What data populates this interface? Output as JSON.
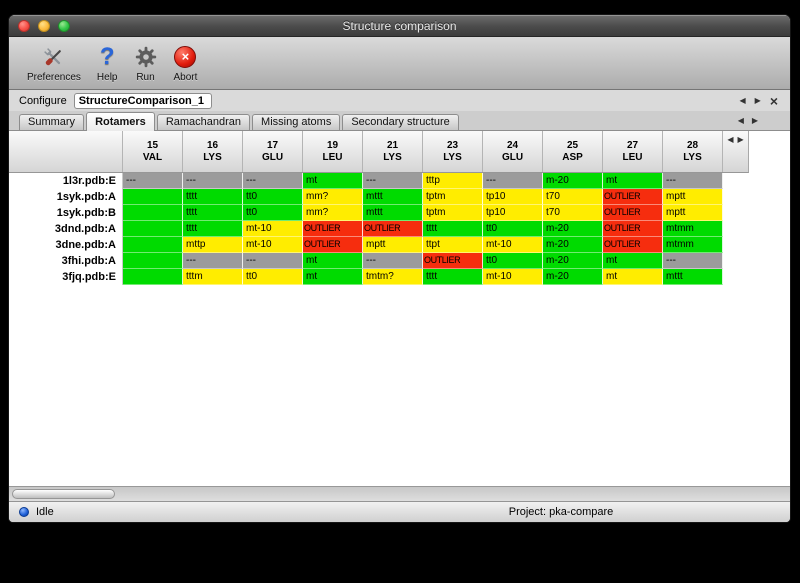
{
  "window": {
    "title": "Structure comparison"
  },
  "toolbar": {
    "buttons": [
      {
        "label": "Preferences",
        "icon": "tools-icon"
      },
      {
        "label": "Help",
        "icon": "question-icon"
      },
      {
        "label": "Run",
        "icon": "gear-icon"
      },
      {
        "label": "Abort",
        "icon": "abort-x-icon"
      }
    ]
  },
  "configure": {
    "label": "Configure",
    "value": "StructureComparison_1"
  },
  "icons": {
    "back": "◀",
    "forward": "▶",
    "close": "×",
    "scroll_left": "◀",
    "scroll_right": "▶"
  },
  "tabs": [
    {
      "label": "Summary",
      "selected": false
    },
    {
      "label": "Rotamers",
      "selected": true
    },
    {
      "label": "Ramachandran",
      "selected": false
    },
    {
      "label": "Missing atoms",
      "selected": false
    },
    {
      "label": "Secondary structure",
      "selected": false
    }
  ],
  "table": {
    "legend_colors": {
      "green": "#00db00",
      "yellow": "#ffed00",
      "red": "#f62d0e",
      "gray": "#9b9b9b"
    },
    "columns": [
      {
        "num": "15",
        "res": "VAL"
      },
      {
        "num": "16",
        "res": "LYS"
      },
      {
        "num": "17",
        "res": "GLU"
      },
      {
        "num": "19",
        "res": "LEU"
      },
      {
        "num": "21",
        "res": "LYS"
      },
      {
        "num": "23",
        "res": "LYS"
      },
      {
        "num": "24",
        "res": "GLU"
      },
      {
        "num": "25",
        "res": "ASP"
      },
      {
        "num": "27",
        "res": "LEU"
      },
      {
        "num": "28",
        "res": "LYS"
      }
    ],
    "rows": [
      {
        "name": "1l3r.pdb:E",
        "cells": [
          {
            "t": "---",
            "c": "gray"
          },
          {
            "t": "---",
            "c": "gray"
          },
          {
            "t": "---",
            "c": "gray"
          },
          {
            "t": "mt",
            "c": "green"
          },
          {
            "t": "---",
            "c": "gray"
          },
          {
            "t": "tttp",
            "c": "yellow"
          },
          {
            "t": "---",
            "c": "gray"
          },
          {
            "t": "m-20",
            "c": "green"
          },
          {
            "t": "mt",
            "c": "green"
          },
          {
            "t": "---",
            "c": "gray"
          }
        ]
      },
      {
        "name": "1syk.pdb:A",
        "cells": [
          {
            "t": "",
            "c": "green"
          },
          {
            "t": "tttt",
            "c": "green"
          },
          {
            "t": "tt0",
            "c": "green"
          },
          {
            "t": "mm?",
            "c": "yellow"
          },
          {
            "t": "mttt",
            "c": "green"
          },
          {
            "t": "tptm",
            "c": "yellow"
          },
          {
            "t": "tp10",
            "c": "yellow"
          },
          {
            "t": "t70",
            "c": "yellow"
          },
          {
            "t": "OUTLIER",
            "c": "red"
          },
          {
            "t": "mptt",
            "c": "yellow"
          }
        ]
      },
      {
        "name": "1syk.pdb:B",
        "cells": [
          {
            "t": "",
            "c": "green"
          },
          {
            "t": "tttt",
            "c": "green"
          },
          {
            "t": "tt0",
            "c": "green"
          },
          {
            "t": "mm?",
            "c": "yellow"
          },
          {
            "t": "mttt",
            "c": "green"
          },
          {
            "t": "tptm",
            "c": "yellow"
          },
          {
            "t": "tp10",
            "c": "yellow"
          },
          {
            "t": "t70",
            "c": "yellow"
          },
          {
            "t": "OUTLIER",
            "c": "red"
          },
          {
            "t": "mptt",
            "c": "yellow"
          }
        ]
      },
      {
        "name": "3dnd.pdb:A",
        "cells": [
          {
            "t": "",
            "c": "green"
          },
          {
            "t": "tttt",
            "c": "green"
          },
          {
            "t": "mt-10",
            "c": "yellow"
          },
          {
            "t": "OUTLIER",
            "c": "red"
          },
          {
            "t": "OUTLIER",
            "c": "red"
          },
          {
            "t": "tttt",
            "c": "green"
          },
          {
            "t": "tt0",
            "c": "green"
          },
          {
            "t": "m-20",
            "c": "green"
          },
          {
            "t": "OUTLIER",
            "c": "red"
          },
          {
            "t": "mtmm",
            "c": "green"
          }
        ]
      },
      {
        "name": "3dne.pdb:A",
        "cells": [
          {
            "t": "",
            "c": "green"
          },
          {
            "t": "mttp",
            "c": "yellow"
          },
          {
            "t": "mt-10",
            "c": "yellow"
          },
          {
            "t": "OUTLIER",
            "c": "red"
          },
          {
            "t": "mptt",
            "c": "yellow"
          },
          {
            "t": "ttpt",
            "c": "yellow"
          },
          {
            "t": "mt-10",
            "c": "yellow"
          },
          {
            "t": "m-20",
            "c": "green"
          },
          {
            "t": "OUTLIER",
            "c": "red"
          },
          {
            "t": "mtmm",
            "c": "green"
          }
        ]
      },
      {
        "name": "3fhi.pdb:A",
        "cells": [
          {
            "t": "",
            "c": "green"
          },
          {
            "t": "---",
            "c": "gray"
          },
          {
            "t": "---",
            "c": "gray"
          },
          {
            "t": "mt",
            "c": "green"
          },
          {
            "t": "---",
            "c": "gray"
          },
          {
            "t": "OUTLIER",
            "c": "red"
          },
          {
            "t": "tt0",
            "c": "green"
          },
          {
            "t": "m-20",
            "c": "green"
          },
          {
            "t": "mt",
            "c": "green"
          },
          {
            "t": "---",
            "c": "gray"
          }
        ]
      },
      {
        "name": "3fjq.pdb:E",
        "cells": [
          {
            "t": "",
            "c": "green"
          },
          {
            "t": "tttm",
            "c": "yellow"
          },
          {
            "t": "tt0",
            "c": "yellow"
          },
          {
            "t": "mt",
            "c": "green"
          },
          {
            "t": "tmtm?",
            "c": "yellow"
          },
          {
            "t": "tttt",
            "c": "green"
          },
          {
            "t": "mt-10",
            "c": "yellow"
          },
          {
            "t": "m-20",
            "c": "green"
          },
          {
            "t": "mt",
            "c": "yellow"
          },
          {
            "t": "mttt",
            "c": "green"
          }
        ]
      }
    ]
  },
  "statusbar": {
    "status": "Idle",
    "project": "Project: pka-compare"
  }
}
